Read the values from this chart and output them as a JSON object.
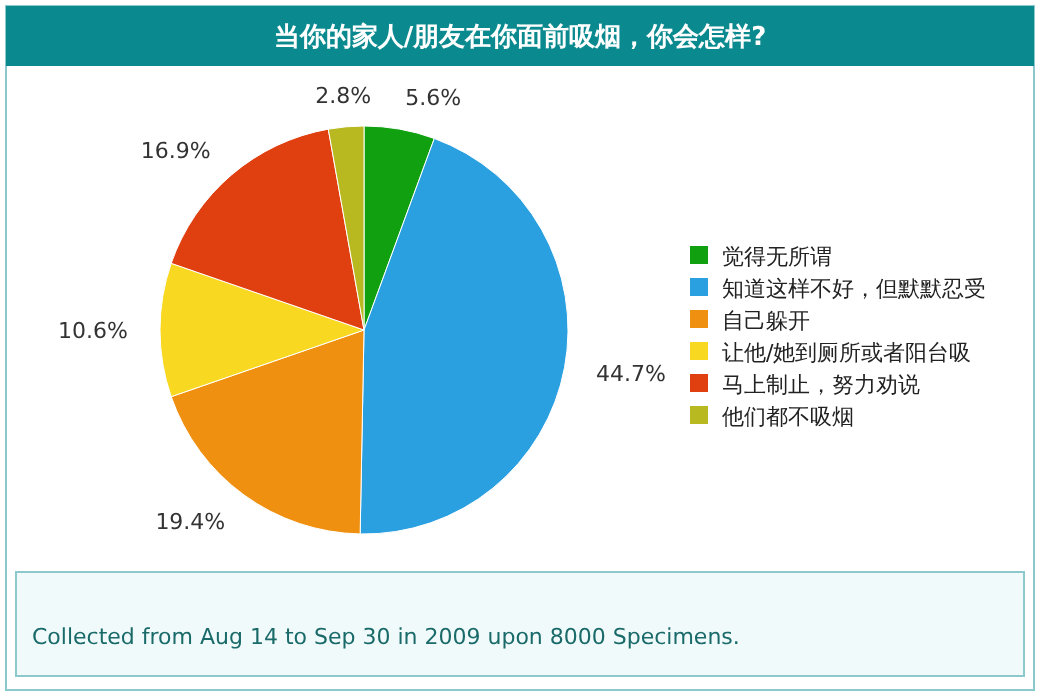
{
  "chart_data": {
    "type": "pie",
    "title": "当你的家人/朋友在你面前吸烟，你会怎样?",
    "categories": [
      "觉得无所谓",
      "知道这样不好，但默默忍受",
      "自己躲开",
      "让他/她到厕所或者阳台吸",
      "马上制止，努力劝说",
      "他们都不吸烟"
    ],
    "values": [
      5.6,
      44.7,
      19.4,
      10.6,
      16.9,
      2.8
    ],
    "value_labels": [
      "5.6%",
      "44.7%",
      "19.4%",
      "10.6%",
      "16.9%",
      "2.8%"
    ],
    "colors": [
      "#10a010",
      "#2aa0e0",
      "#f09010",
      "#f8d820",
      "#e04010",
      "#b8b820"
    ],
    "legend": "right",
    "annotations": [
      "Collected from Aug 14 to Sep 30 in 2009 upon 8000 Specimens."
    ]
  }
}
